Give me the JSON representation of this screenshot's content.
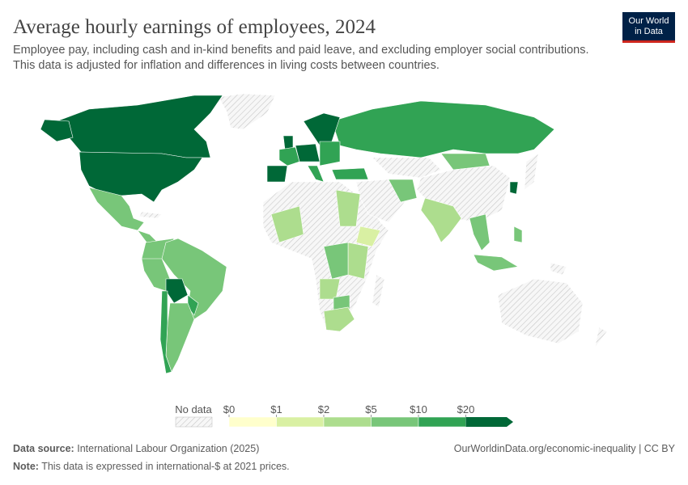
{
  "header": {
    "title": "Average hourly earnings of employees, 2024",
    "subtitle_lines": [
      "Employee pay, including cash and in-kind benefits and paid leave, and excluding employer social contributions.",
      "This data is adjusted for inflation and differences in living costs between countries."
    ],
    "logo_lines": [
      "Our World",
      "in Data"
    ]
  },
  "legend": {
    "no_data": "No data",
    "bins": [
      "$0",
      "$1",
      "$2",
      "$5",
      "$10",
      "$20"
    ],
    "colors": [
      "#ffffcc",
      "#d9f0a3",
      "#addd8e",
      "#78c679",
      "#31a354",
      "#006837"
    ]
  },
  "footer": {
    "source_label": "Data source:",
    "source": "International Labour Organization (2025)",
    "credit": "OurWorldinData.org/economic-inequality | CC BY",
    "note_label": "Note:",
    "note": "This data is expressed in international-$ at 2021 prices."
  }
}
